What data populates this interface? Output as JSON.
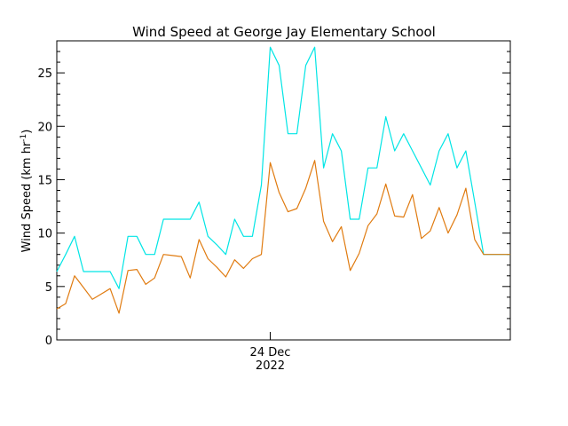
{
  "chart_data": {
    "type": "line",
    "title": "Wind Speed at George Jay Elementary School",
    "ylabel_text": "Wind Speed (km hr",
    "ylabel_sup": "-1",
    "ylabel_close": ")",
    "ylim": [
      0,
      28
    ],
    "xlim": [
      0,
      51
    ],
    "yticks": [
      0,
      5,
      10,
      15,
      20,
      25
    ],
    "ytick_labels": [
      "0",
      "5",
      "10",
      "15",
      "20",
      "25"
    ],
    "date_tick": {
      "x": 24,
      "line1": "24 Dec",
      "line2": "2022"
    },
    "grid": false,
    "series": [
      {
        "color": "#00e5e5",
        "x": [
          0,
          1,
          2,
          3,
          4,
          5,
          6,
          7,
          8,
          9,
          10,
          11,
          12,
          13,
          14,
          15,
          16,
          17,
          18,
          19,
          20,
          21,
          22,
          23,
          24,
          25,
          26,
          27,
          28,
          29,
          30,
          31,
          32,
          33,
          34,
          35,
          36,
          37,
          38,
          39,
          40,
          41,
          42,
          43,
          44,
          45,
          46,
          47,
          48,
          49,
          50,
          51
        ],
        "values": [
          6.4,
          8.0,
          9.7,
          6.4,
          6.4,
          6.4,
          6.4,
          4.8,
          9.7,
          9.7,
          8.0,
          8.0,
          11.3,
          11.3,
          11.3,
          11.3,
          12.9,
          9.7,
          8.9,
          8.0,
          11.3,
          9.7,
          9.7,
          14.5,
          27.4,
          25.7,
          19.3,
          19.3,
          25.7,
          27.4,
          16.1,
          19.3,
          17.7,
          11.3,
          11.3,
          16.1,
          16.1,
          20.9,
          17.7,
          19.3,
          17.7,
          16.1,
          14.5,
          17.7,
          19.3,
          16.1,
          17.7,
          12.9,
          8.0,
          8.0,
          8.0,
          8.0
        ]
      },
      {
        "color": "#e07b10",
        "x": [
          0,
          1,
          2,
          3,
          4,
          5,
          6,
          7,
          8,
          9,
          10,
          11,
          12,
          13,
          14,
          15,
          16,
          17,
          18,
          19,
          20,
          21,
          22,
          23,
          24,
          25,
          26,
          27,
          28,
          29,
          30,
          31,
          32,
          33,
          34,
          35,
          36,
          37,
          38,
          39,
          40,
          41,
          42,
          43,
          44,
          45,
          46,
          47,
          48,
          49,
          50,
          51
        ],
        "values": [
          2.9,
          3.4,
          6.0,
          4.9,
          3.8,
          4.3,
          4.8,
          2.5,
          6.5,
          6.6,
          5.2,
          5.8,
          8.0,
          7.9,
          7.8,
          5.8,
          9.4,
          7.6,
          6.8,
          5.9,
          7.5,
          6.7,
          7.6,
          8.0,
          16.6,
          13.8,
          12.0,
          12.3,
          14.2,
          16.8,
          11.1,
          9.2,
          10.6,
          6.5,
          8.1,
          10.7,
          11.8,
          14.6,
          11.6,
          11.5,
          13.6,
          9.5,
          10.2,
          12.4,
          10.0,
          11.7,
          14.2,
          9.4,
          8.0,
          8.0,
          8.0,
          8.0
        ]
      }
    ]
  }
}
